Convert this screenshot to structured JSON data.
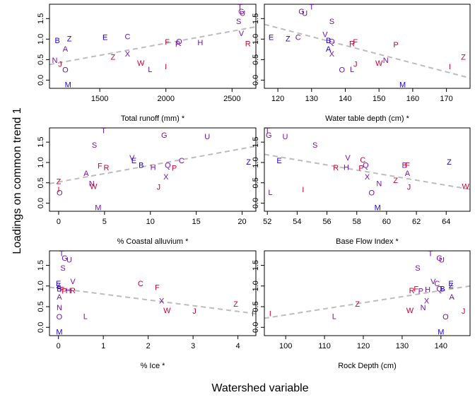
{
  "figure": {
    "ylabel": "Loadings on common trend 1",
    "xlabel": "Watershed variable"
  },
  "colors": {
    "blue": "#2200cc",
    "purple": "#7711aa",
    "red": "#cc0033",
    "trend_line": "#bdbdbd"
  },
  "chart_data": [
    {
      "type": "scatter",
      "xlabel": "Total runoff (mm) *",
      "ylabel": "Loadings on common trend 1",
      "xlim": [
        1120,
        2680
      ],
      "ylim": [
        -0.2,
        1.85
      ],
      "xticks": [
        1500,
        2000,
        2500
      ],
      "yticks": [
        0.0,
        0.5,
        1.0,
        1.5
      ],
      "trend": [
        [
          1120,
          0.38
        ],
        [
          2680,
          1.3
        ]
      ],
      "points": [
        {
          "label": "B",
          "x": 1180,
          "y": 0.95,
          "color": "blue"
        },
        {
          "label": "Z",
          "x": 1270,
          "y": 1.0,
          "color": "blue"
        },
        {
          "label": "A",
          "x": 1240,
          "y": 0.75,
          "color": "purple"
        },
        {
          "label": "N",
          "x": 1160,
          "y": 0.47,
          "color": "purple"
        },
        {
          "label": "J",
          "x": 1200,
          "y": 0.38,
          "color": "red"
        },
        {
          "label": "O",
          "x": 1240,
          "y": 0.24,
          "color": "purple"
        },
        {
          "label": "M",
          "x": 1260,
          "y": -0.12,
          "color": "blue"
        },
        {
          "label": "E",
          "x": 1540,
          "y": 1.03,
          "color": "blue"
        },
        {
          "label": "C",
          "x": 1710,
          "y": 1.05,
          "color": "purple"
        },
        {
          "label": "Z",
          "x": 1600,
          "y": 0.55,
          "color": "red"
        },
        {
          "label": "X",
          "x": 1710,
          "y": 0.63,
          "color": "purple"
        },
        {
          "label": "W",
          "x": 1810,
          "y": 0.4,
          "color": "red"
        },
        {
          "label": "L",
          "x": 1880,
          "y": 0.25,
          "color": "purple"
        },
        {
          "label": "I",
          "x": 2000,
          "y": 0.32,
          "color": "red"
        },
        {
          "label": "F",
          "x": 2010,
          "y": 0.92,
          "color": "red"
        },
        {
          "label": "Q",
          "x": 2100,
          "y": 0.93,
          "color": "purple"
        },
        {
          "label": "P",
          "x": 2090,
          "y": 0.87,
          "color": "purple"
        },
        {
          "label": "H",
          "x": 2260,
          "y": 0.9,
          "color": "purple"
        },
        {
          "label": "T",
          "x": 2560,
          "y": 1.77,
          "color": "purple"
        },
        {
          "label": "G",
          "x": 2570,
          "y": 1.66,
          "color": "purple"
        },
        {
          "label": "U",
          "x": 2580,
          "y": 1.62,
          "color": "purple"
        },
        {
          "label": "S",
          "x": 2550,
          "y": 1.42,
          "color": "purple"
        },
        {
          "label": "V",
          "x": 2570,
          "y": 1.13,
          "color": "purple"
        },
        {
          "label": "R",
          "x": 2620,
          "y": 0.88,
          "color": "red"
        }
      ]
    },
    {
      "type": "scatter",
      "xlabel": "Water table depth (cm) *",
      "ylabel": "",
      "xlim": [
        116,
        177
      ],
      "ylim": [
        -0.2,
        1.85
      ],
      "xticks": [
        120,
        130,
        140,
        150,
        160,
        170
      ],
      "yticks": [
        0.0,
        0.5,
        1.0,
        1.5
      ],
      "trend": [
        [
          116,
          1.36
        ],
        [
          177,
          0.05
        ]
      ],
      "points": [
        {
          "label": "E",
          "x": 118,
          "y": 1.03,
          "color": "blue"
        },
        {
          "label": "Z",
          "x": 123,
          "y": 1.0,
          "color": "blue"
        },
        {
          "label": "C",
          "x": 126,
          "y": 1.03,
          "color": "purple"
        },
        {
          "label": "G",
          "x": 127,
          "y": 1.66,
          "color": "purple"
        },
        {
          "label": "U",
          "x": 128,
          "y": 1.62,
          "color": "purple"
        },
        {
          "label": "T",
          "x": 130,
          "y": 1.77,
          "color": "purple"
        },
        {
          "label": "S",
          "x": 136,
          "y": 1.42,
          "color": "purple"
        },
        {
          "label": "V",
          "x": 134,
          "y": 1.1,
          "color": "purple"
        },
        {
          "label": "B",
          "x": 135,
          "y": 0.95,
          "color": "blue"
        },
        {
          "label": "Q",
          "x": 136,
          "y": 0.93,
          "color": "purple"
        },
        {
          "label": "A",
          "x": 135,
          "y": 0.75,
          "color": "blue"
        },
        {
          "label": "X",
          "x": 136,
          "y": 0.63,
          "color": "purple"
        },
        {
          "label": "R",
          "x": 142,
          "y": 0.88,
          "color": "red"
        },
        {
          "label": "F",
          "x": 143,
          "y": 0.92,
          "color": "red"
        },
        {
          "label": "O",
          "x": 139,
          "y": 0.24,
          "color": "purple"
        },
        {
          "label": "L",
          "x": 142,
          "y": 0.25,
          "color": "purple"
        },
        {
          "label": "J",
          "x": 143,
          "y": 0.38,
          "color": "red"
        },
        {
          "label": "N",
          "x": 152,
          "y": 0.47,
          "color": "purple"
        },
        {
          "label": "W",
          "x": 150,
          "y": 0.4,
          "color": "red"
        },
        {
          "label": "P",
          "x": 155,
          "y": 0.85,
          "color": "red"
        },
        {
          "label": "M",
          "x": 157,
          "y": -0.12,
          "color": "blue"
        },
        {
          "label": "I",
          "x": 171,
          "y": 0.32,
          "color": "red"
        },
        {
          "label": "Z",
          "x": 175,
          "y": 0.55,
          "color": "red"
        }
      ]
    },
    {
      "type": "scatter",
      "xlabel": "% Coastal alluvium *",
      "ylabel": "",
      "xlim": [
        -1,
        21.5
      ],
      "ylim": [
        -0.2,
        1.85
      ],
      "xticks": [
        0,
        5,
        10,
        15,
        20
      ],
      "yticks": [
        0.0,
        0.5,
        1.0,
        1.5
      ],
      "trend": [
        [
          -1,
          0.48
        ],
        [
          21.5,
          1.4
        ]
      ],
      "points": [
        {
          "label": "Z",
          "x": 0.0,
          "y": 0.52,
          "color": "red"
        },
        {
          "label": "I",
          "x": 0.0,
          "y": 0.32,
          "color": "red"
        },
        {
          "label": "O",
          "x": 0.1,
          "y": 0.24,
          "color": "purple"
        },
        {
          "label": "A",
          "x": 3.0,
          "y": 0.72,
          "color": "purple"
        },
        {
          "label": "N",
          "x": 3.6,
          "y": 0.47,
          "color": "purple"
        },
        {
          "label": "W",
          "x": 3.8,
          "y": 0.4,
          "color": "red"
        },
        {
          "label": "S",
          "x": 3.9,
          "y": 1.42,
          "color": "purple"
        },
        {
          "label": "M",
          "x": 4.3,
          "y": -0.12,
          "color": "purple"
        },
        {
          "label": "F",
          "x": 4.5,
          "y": 0.9,
          "color": "red"
        },
        {
          "label": "T",
          "x": 4.9,
          "y": 1.77,
          "color": "purple"
        },
        {
          "label": "R",
          "x": 5.2,
          "y": 0.86,
          "color": "red"
        },
        {
          "label": "V",
          "x": 8.0,
          "y": 1.1,
          "color": "purple"
        },
        {
          "label": "E",
          "x": 8.2,
          "y": 1.03,
          "color": "blue"
        },
        {
          "label": "B",
          "x": 9.0,
          "y": 0.92,
          "color": "blue"
        },
        {
          "label": "H",
          "x": 10.3,
          "y": 0.87,
          "color": "purple"
        },
        {
          "label": "J",
          "x": 10.9,
          "y": 0.38,
          "color": "red"
        },
        {
          "label": "G",
          "x": 11.5,
          "y": 1.66,
          "color": "purple"
        },
        {
          "label": "Q",
          "x": 11.9,
          "y": 0.92,
          "color": "purple"
        },
        {
          "label": "X",
          "x": 11.7,
          "y": 0.63,
          "color": "purple"
        },
        {
          "label": "P",
          "x": 12.6,
          "y": 0.85,
          "color": "red"
        },
        {
          "label": "C",
          "x": 13.4,
          "y": 1.03,
          "color": "purple"
        },
        {
          "label": "U",
          "x": 16.2,
          "y": 1.62,
          "color": "purple"
        },
        {
          "label": "Z",
          "x": 20.7,
          "y": 1.0,
          "color": "blue"
        }
      ]
    },
    {
      "type": "scatter",
      "xlabel": "Base Flow Index *",
      "ylabel": "",
      "xlim": [
        51.8,
        65.6
      ],
      "ylim": [
        -0.2,
        1.85
      ],
      "xticks": [
        52,
        54,
        56,
        58,
        60,
        62,
        64
      ],
      "yticks": [
        0.0,
        0.5,
        1.0,
        1.5
      ],
      "trend": [
        [
          51.8,
          1.2
        ],
        [
          65.6,
          0.34
        ]
      ],
      "points": [
        {
          "label": "T",
          "x": 52.0,
          "y": 1.77,
          "color": "purple"
        },
        {
          "label": "G",
          "x": 52.1,
          "y": 1.66,
          "color": "purple"
        },
        {
          "label": "U",
          "x": 53.2,
          "y": 1.62,
          "color": "purple"
        },
        {
          "label": "E",
          "x": 52.8,
          "y": 1.03,
          "color": "blue"
        },
        {
          "label": "L",
          "x": 52.2,
          "y": 0.25,
          "color": "purple"
        },
        {
          "label": "S",
          "x": 55.2,
          "y": 1.42,
          "color": "purple"
        },
        {
          "label": "I",
          "x": 54.4,
          "y": 0.32,
          "color": "red"
        },
        {
          "label": "V",
          "x": 57.4,
          "y": 1.1,
          "color": "purple"
        },
        {
          "label": "R",
          "x": 56.6,
          "y": 0.86,
          "color": "red"
        },
        {
          "label": "H",
          "x": 57.3,
          "y": 0.87,
          "color": "purple"
        },
        {
          "label": "C",
          "x": 58.4,
          "y": 1.05,
          "color": "red"
        },
        {
          "label": "Q",
          "x": 58.6,
          "y": 0.92,
          "color": "purple"
        },
        {
          "label": "P",
          "x": 58.3,
          "y": 0.85,
          "color": "red"
        },
        {
          "label": "X",
          "x": 58.7,
          "y": 0.63,
          "color": "purple"
        },
        {
          "label": "O",
          "x": 59.0,
          "y": 0.24,
          "color": "purple"
        },
        {
          "label": "N",
          "x": 59.5,
          "y": 0.47,
          "color": "purple"
        },
        {
          "label": "M",
          "x": 59.4,
          "y": -0.12,
          "color": "blue"
        },
        {
          "label": "Z",
          "x": 60.6,
          "y": 0.55,
          "color": "red"
        },
        {
          "label": "B",
          "x": 61.2,
          "y": 0.92,
          "color": "purple"
        },
        {
          "label": "F",
          "x": 61.4,
          "y": 0.92,
          "color": "red"
        },
        {
          "label": "A",
          "x": 61.4,
          "y": 0.72,
          "color": "purple"
        },
        {
          "label": "J",
          "x": 61.5,
          "y": 0.38,
          "color": "red"
        },
        {
          "label": "Z",
          "x": 64.2,
          "y": 1.0,
          "color": "blue"
        },
        {
          "label": "W",
          "x": 65.3,
          "y": 0.4,
          "color": "red"
        }
      ]
    },
    {
      "type": "scatter",
      "xlabel": "% Ice *",
      "ylabel": "",
      "xlim": [
        -0.2,
        4.4
      ],
      "ylim": [
        -0.2,
        1.85
      ],
      "xticks": [
        0,
        1,
        2,
        3,
        4
      ],
      "yticks": [
        0.0,
        0.5,
        1.0,
        1.5
      ],
      "trend": [
        [
          -0.2,
          0.97
        ],
        [
          4.4,
          0.33
        ]
      ],
      "points": [
        {
          "label": "T",
          "x": 0.07,
          "y": 1.77,
          "color": "purple"
        },
        {
          "label": "G",
          "x": 0.14,
          "y": 1.66,
          "color": "purple"
        },
        {
          "label": "U",
          "x": 0.24,
          "y": 1.62,
          "color": "purple"
        },
        {
          "label": "S",
          "x": 0.1,
          "y": 1.42,
          "color": "purple"
        },
        {
          "label": "E",
          "x": 0.0,
          "y": 1.05,
          "color": "blue"
        },
        {
          "label": "Z",
          "x": 0.0,
          "y": 1.0,
          "color": "blue"
        },
        {
          "label": "B",
          "x": 0.02,
          "y": 0.92,
          "color": "blue"
        },
        {
          "label": "F",
          "x": 0.08,
          "y": 0.9,
          "color": "red"
        },
        {
          "label": "P",
          "x": 0.13,
          "y": 0.87,
          "color": "red"
        },
        {
          "label": "H",
          "x": 0.22,
          "y": 0.88,
          "color": "purple"
        },
        {
          "label": "R",
          "x": 0.32,
          "y": 0.88,
          "color": "red"
        },
        {
          "label": "V",
          "x": 0.32,
          "y": 1.1,
          "color": "purple"
        },
        {
          "label": "A",
          "x": 0.02,
          "y": 0.72,
          "color": "purple"
        },
        {
          "label": "N",
          "x": 0.02,
          "y": 0.47,
          "color": "purple"
        },
        {
          "label": "O",
          "x": 0.02,
          "y": 0.24,
          "color": "purple"
        },
        {
          "label": "M",
          "x": 0.02,
          "y": -0.12,
          "color": "blue"
        },
        {
          "label": "L",
          "x": 0.6,
          "y": 0.25,
          "color": "purple"
        },
        {
          "label": "C",
          "x": 1.83,
          "y": 1.05,
          "color": "red"
        },
        {
          "label": "F",
          "x": 2.2,
          "y": 0.95,
          "color": "red"
        },
        {
          "label": "X",
          "x": 2.3,
          "y": 0.63,
          "color": "purple"
        },
        {
          "label": "W",
          "x": 2.42,
          "y": 0.4,
          "color": "red"
        },
        {
          "label": "J",
          "x": 3.03,
          "y": 0.38,
          "color": "red"
        },
        {
          "label": "Z",
          "x": 3.95,
          "y": 0.55,
          "color": "red"
        },
        {
          "label": "I",
          "x": 4.33,
          "y": 0.32,
          "color": "red"
        }
      ]
    },
    {
      "type": "scatter",
      "xlabel": "Rock Depth (cm)",
      "ylabel": "",
      "xlim": [
        94.5,
        147.5
      ],
      "ylim": [
        -0.2,
        1.85
      ],
      "xticks": [
        100,
        110,
        120,
        130,
        140
      ],
      "yticks": [
        0.0,
        0.5,
        1.0,
        1.5
      ],
      "trend": [
        [
          94.5,
          0.22
        ],
        [
          147.5,
          1.0
        ]
      ],
      "points": [
        {
          "label": "I",
          "x": 96.0,
          "y": 0.32,
          "color": "red"
        },
        {
          "label": "L",
          "x": 112.5,
          "y": 0.25,
          "color": "purple"
        },
        {
          "label": "Z",
          "x": 118.5,
          "y": 0.55,
          "color": "red"
        },
        {
          "label": "W",
          "x": 132.0,
          "y": 0.4,
          "color": "red"
        },
        {
          "label": "R",
          "x": 132.5,
          "y": 0.88,
          "color": "red"
        },
        {
          "label": "F",
          "x": 133.6,
          "y": 0.92,
          "color": "red"
        },
        {
          "label": "S",
          "x": 134.0,
          "y": 1.42,
          "color": "purple"
        },
        {
          "label": "P",
          "x": 134.8,
          "y": 0.87,
          "color": "purple"
        },
        {
          "label": "N",
          "x": 135.4,
          "y": 0.47,
          "color": "purple"
        },
        {
          "label": "X",
          "x": 136.3,
          "y": 0.63,
          "color": "purple"
        },
        {
          "label": "H",
          "x": 136.6,
          "y": 0.9,
          "color": "purple"
        },
        {
          "label": "T",
          "x": 137.3,
          "y": 1.77,
          "color": "purple"
        },
        {
          "label": "V",
          "x": 138.0,
          "y": 1.1,
          "color": "purple"
        },
        {
          "label": "C",
          "x": 139.0,
          "y": 1.05,
          "color": "purple"
        },
        {
          "label": "Q",
          "x": 139.6,
          "y": 0.92,
          "color": "purple"
        },
        {
          "label": "G",
          "x": 139.6,
          "y": 1.66,
          "color": "purple"
        },
        {
          "label": "U",
          "x": 140.2,
          "y": 1.62,
          "color": "purple"
        },
        {
          "label": "B",
          "x": 140.4,
          "y": 0.92,
          "color": "blue"
        },
        {
          "label": "M",
          "x": 140.0,
          "y": -0.12,
          "color": "blue"
        },
        {
          "label": "O",
          "x": 141.2,
          "y": 0.24,
          "color": "purple"
        },
        {
          "label": "E",
          "x": 142.6,
          "y": 1.05,
          "color": "blue"
        },
        {
          "label": "Z",
          "x": 142.6,
          "y": 1.0,
          "color": "blue"
        },
        {
          "label": "A",
          "x": 142.8,
          "y": 0.72,
          "color": "purple"
        },
        {
          "label": "J",
          "x": 145.8,
          "y": 0.38,
          "color": "red"
        }
      ]
    }
  ]
}
